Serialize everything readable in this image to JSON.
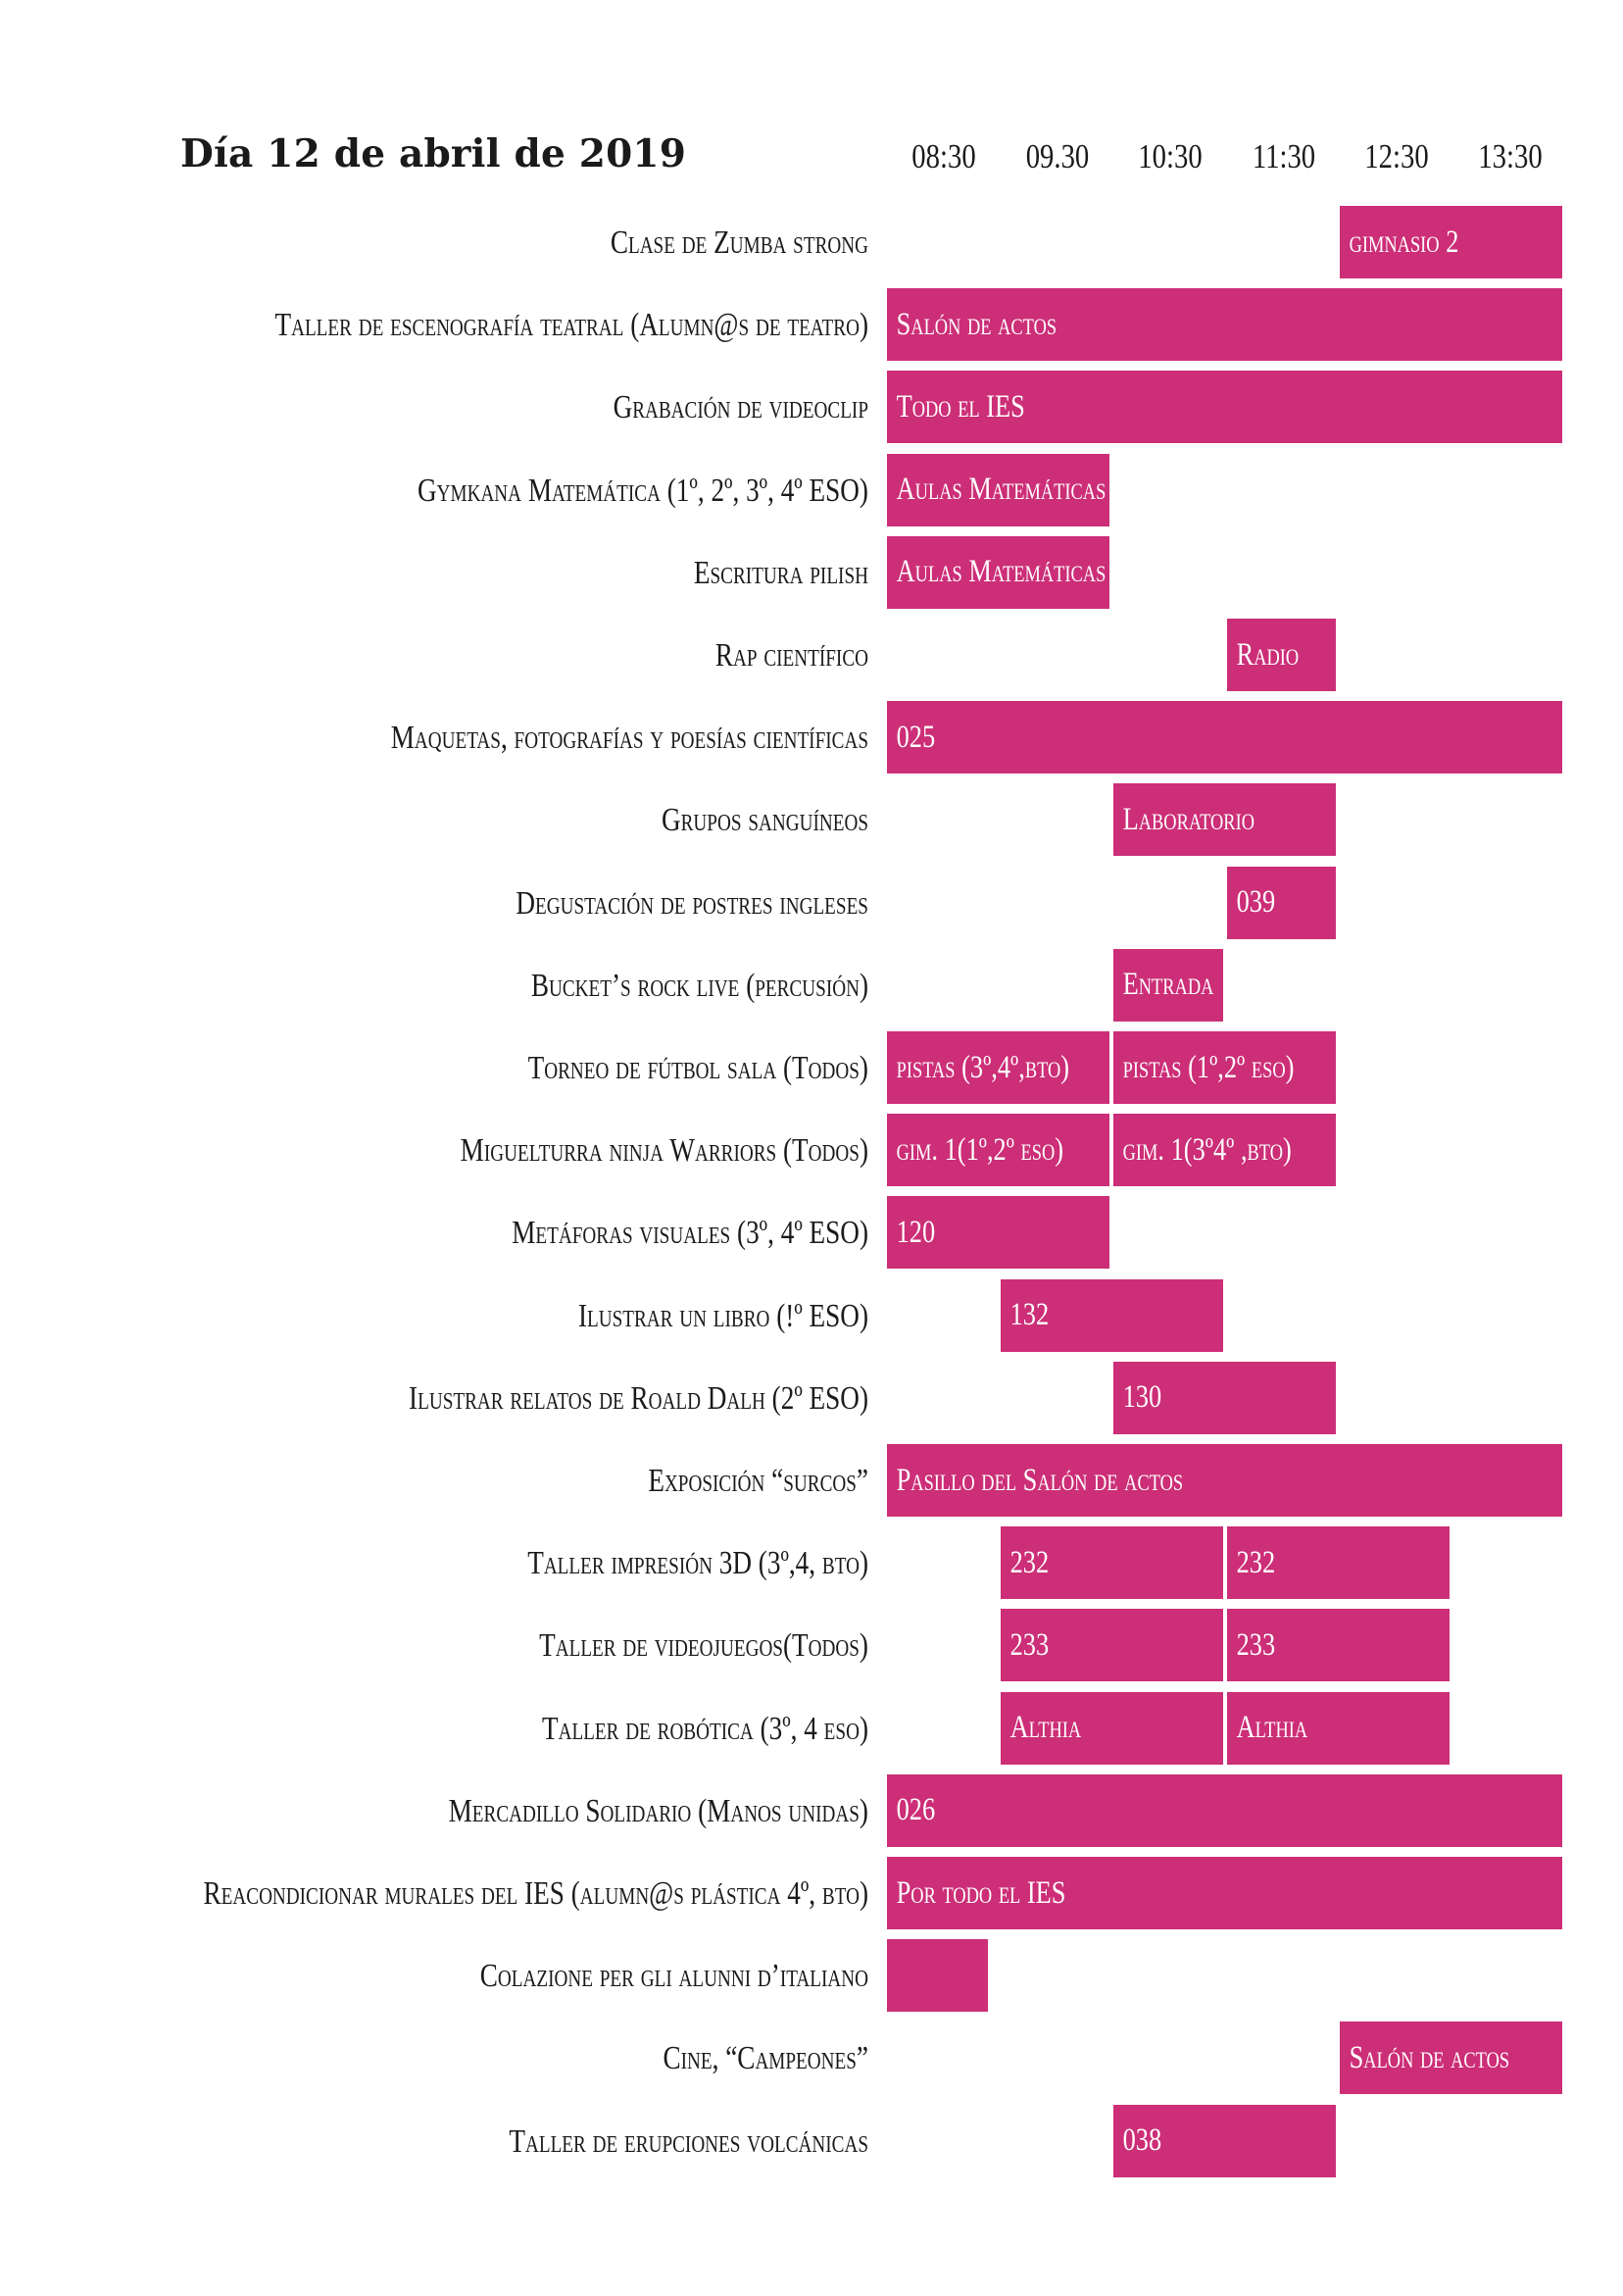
{
  "title": "Día 12 de abril de 2019",
  "accent_color": "#cc2e77",
  "times": [
    "08:30",
    "09.30",
    "10:30",
    "11:30",
    "12:30",
    "13:30"
  ],
  "rows": [
    {
      "label": "Clase de Zumba strong",
      "blocks": [
        {
          "text": "gimnasio 2",
          "start": 4,
          "end": 6
        }
      ]
    },
    {
      "label": "Taller de escenografía teatral (Alumn@s de teatro)",
      "blocks": [
        {
          "text": "Salón de actos",
          "start": 0,
          "end": 6
        }
      ]
    },
    {
      "label": "Grabación de videoclip",
      "blocks": [
        {
          "text": "Todo el IES",
          "start": 0,
          "end": 6
        }
      ]
    },
    {
      "label": "Gymkana Matemática (1º, 2º, 3º, 4º ESO)",
      "blocks": [
        {
          "text": "Aulas Matemáticas",
          "start": 0,
          "end": 2
        }
      ]
    },
    {
      "label": "Escritura pilish",
      "blocks": [
        {
          "text": "Aulas Matemáticas",
          "start": 0,
          "end": 2
        }
      ]
    },
    {
      "label": "Rap científico",
      "blocks": [
        {
          "text": "Radio",
          "start": 3,
          "end": 4
        }
      ]
    },
    {
      "label": "Maquetas, fotografías y poesías científicas",
      "blocks": [
        {
          "text": "025",
          "start": 0,
          "end": 6
        }
      ]
    },
    {
      "label": "Grupos sanguíneos",
      "blocks": [
        {
          "text": "Laboratorio",
          "start": 2,
          "end": 4
        }
      ]
    },
    {
      "label": "Degustación de postres ingleses",
      "blocks": [
        {
          "text": "039",
          "start": 3,
          "end": 4
        }
      ]
    },
    {
      "label": "Bucket’s rock live (percusión)",
      "blocks": [
        {
          "text": "Entrada",
          "start": 2,
          "end": 3
        }
      ]
    },
    {
      "label": "Torneo de fútbol sala (Todos)",
      "blocks": [
        {
          "text": "pistas (3º,4º,bto)",
          "start": 0,
          "end": 2
        },
        {
          "text": "pistas (1º,2º eso)",
          "start": 2,
          "end": 4
        }
      ]
    },
    {
      "label": "Miguelturra ninja Warriors (Todos)",
      "blocks": [
        {
          "text": "gim. 1(1º,2º eso)",
          "start": 0,
          "end": 2
        },
        {
          "text": "gim. 1(3º4º ,bto)",
          "start": 2,
          "end": 4
        }
      ]
    },
    {
      "label": "Metáforas visuales (3º, 4º ESO)",
      "blocks": [
        {
          "text": "120",
          "start": 0,
          "end": 2
        }
      ]
    },
    {
      "label": "Ilustrar un libro (!º ESO)",
      "blocks": [
        {
          "text": "132",
          "start": 1,
          "end": 3
        }
      ]
    },
    {
      "label": "Ilustrar relatos de Roald Dalh (2º ESO)",
      "blocks": [
        {
          "text": "130",
          "start": 2,
          "end": 4
        }
      ]
    },
    {
      "label": "Exposición “surcos”",
      "blocks": [
        {
          "text": "Pasillo del Salón de actos",
          "start": 0,
          "end": 6
        }
      ]
    },
    {
      "label": "Taller impresión 3D (3º,4, bto)",
      "blocks": [
        {
          "text": "232",
          "start": 1,
          "end": 3
        },
        {
          "text": "232",
          "start": 3,
          "end": 5
        }
      ]
    },
    {
      "label": "Taller de videojuegos(Todos)",
      "blocks": [
        {
          "text": "233",
          "start": 1,
          "end": 3
        },
        {
          "text": "233",
          "start": 3,
          "end": 5
        }
      ]
    },
    {
      "label": "Taller de robótica (3º, 4 eso)",
      "blocks": [
        {
          "text": "Althia",
          "start": 1,
          "end": 3
        },
        {
          "text": "Althia",
          "start": 3,
          "end": 5
        }
      ]
    },
    {
      "label": "Mercadillo Solidario (Manos unidas)",
      "blocks": [
        {
          "text": "026",
          "start": 0,
          "end": 6
        }
      ]
    },
    {
      "label": "Reacondicionar murales del IES (alumn@s plástica 4º, bto)",
      "blocks": [
        {
          "text": "Por todo el IES",
          "start": 0,
          "end": 6
        }
      ]
    },
    {
      "label": "Colazione per gli alunni d’italiano",
      "blocks": [
        {
          "text": "",
          "start": 0,
          "end": 0.93
        }
      ]
    },
    {
      "label": "Cine, “Campeones”",
      "blocks": [
        {
          "text": "Salón de actos",
          "start": 4,
          "end": 6
        }
      ]
    },
    {
      "label": "Taller de erupciones volcánicas",
      "blocks": [
        {
          "text": "038",
          "start": 2,
          "end": 4
        }
      ]
    }
  ]
}
